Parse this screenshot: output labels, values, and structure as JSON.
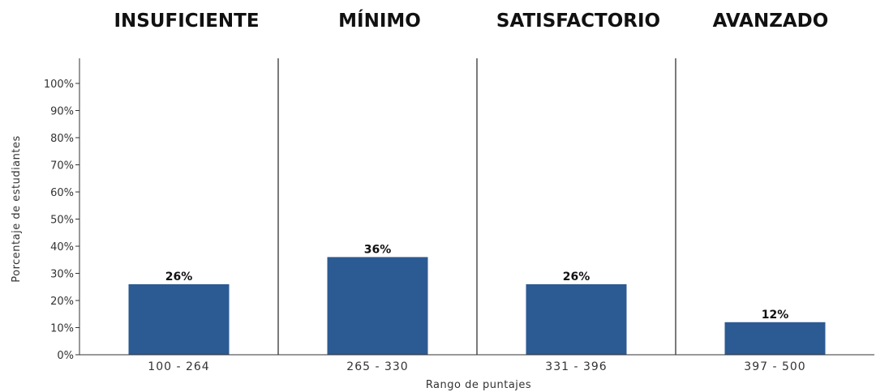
{
  "chart_data": {
    "type": "bar",
    "levels": [
      "INSUFICIENTE",
      "MÍNIMO",
      "SATISFACTORIO",
      "AVANZADO"
    ],
    "categories": [
      "100 - 264",
      "265 - 330",
      "331 - 396",
      "397 - 500"
    ],
    "values": [
      26,
      36,
      26,
      12
    ],
    "value_labels": [
      "26%",
      "36%",
      "26%",
      "12%"
    ],
    "xlabel": "Rango de puntajes",
    "ylabel": "Porcentaje de estudiantes",
    "ylim": [
      0,
      100
    ],
    "yticks": [
      0,
      10,
      20,
      30,
      40,
      50,
      60,
      70,
      80,
      90,
      100
    ],
    "ytick_labels": [
      "0%",
      "10%",
      "20%",
      "30%",
      "40%",
      "50%",
      "60%",
      "70%",
      "80%",
      "90%",
      "100%"
    ],
    "bar_color": "#2c5a93",
    "grid": false
  }
}
